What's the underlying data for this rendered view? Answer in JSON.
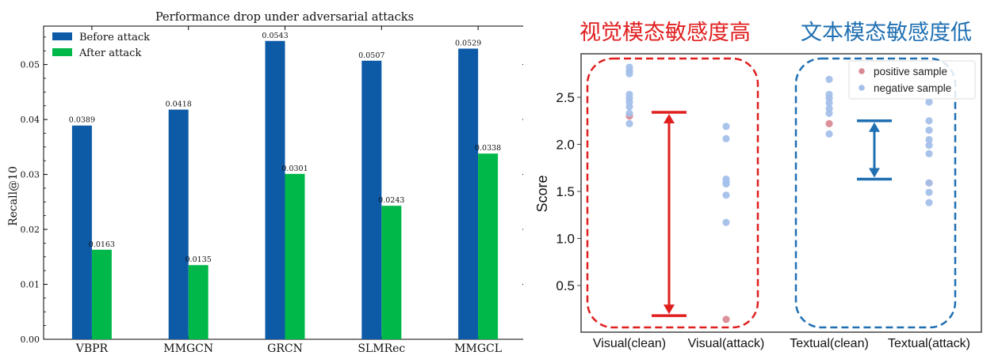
{
  "chart_data": [
    {
      "type": "bar",
      "title": "Performance drop under adversarial attacks",
      "xlabel": "",
      "ylabel": "Recall@10",
      "categories": [
        "VBPR",
        "MMGCN",
        "GRCN",
        "SLMRec",
        "MMGCL"
      ],
      "series": [
        {
          "name": "Before attack",
          "values": [
            0.0389,
            0.0418,
            0.0543,
            0.0507,
            0.0529
          ],
          "labels": [
            "0.0389",
            "0.0418",
            "0.0543",
            "0.0507",
            "0.0529"
          ]
        },
        {
          "name": "After attack",
          "values": [
            0.0163,
            0.0135,
            0.0301,
            0.0243,
            0.0338
          ],
          "labels": [
            "0.0163",
            "0.0135",
            "0.0301",
            "0.0243",
            "0.0338"
          ]
        }
      ],
      "ylim": [
        0,
        0.057
      ],
      "yticks": [
        0.0,
        0.01,
        0.02,
        0.03,
        0.04,
        0.05
      ],
      "ytick_labels": [
        "0.00",
        "0.01",
        "0.02",
        "0.03",
        "0.04",
        "0.05"
      ],
      "legend_position": "top-left",
      "grid": false,
      "colors": {
        "before": "#0d5aa7",
        "after": "#00b84a"
      }
    },
    {
      "type": "scatter",
      "xlabel": "",
      "ylabel": "Score",
      "categories": [
        "Visual(clean)",
        "Visual(attack)",
        "Textual(clean)",
        "Textual(attack)"
      ],
      "ylim": [
        0.0,
        2.9
      ],
      "yticks": [
        0.5,
        1.0,
        1.5,
        2.0,
        2.5
      ],
      "ytick_labels": [
        "0.5",
        "1.0",
        "1.5",
        "2.0",
        "2.5"
      ],
      "legend_position": "top-right",
      "legend": [
        "positive sample",
        "negative sample"
      ],
      "series": [
        {
          "name": "positive sample",
          "color": "#d98a95",
          "points": [
            {
              "x": "Visual(clean)",
              "y": 2.3
            },
            {
              "x": "Visual(attack)",
              "y": 0.14
            },
            {
              "x": "Textual(clean)",
              "y": 2.22
            },
            {
              "x": "Textual(attack)",
              "y": 1.59
            }
          ]
        },
        {
          "name": "negative sample",
          "color": "#a4c0ea",
          "points": [
            {
              "x": "Visual(clean)",
              "y": 2.82
            },
            {
              "x": "Visual(clean)",
              "y": 2.78
            },
            {
              "x": "Visual(clean)",
              "y": 2.75
            },
            {
              "x": "Visual(clean)",
              "y": 2.53
            },
            {
              "x": "Visual(clean)",
              "y": 2.49
            },
            {
              "x": "Visual(clean)",
              "y": 2.45
            },
            {
              "x": "Visual(clean)",
              "y": 2.4
            },
            {
              "x": "Visual(clean)",
              "y": 2.33
            },
            {
              "x": "Visual(clean)",
              "y": 2.22
            },
            {
              "x": "Visual(attack)",
              "y": 2.19
            },
            {
              "x": "Visual(attack)",
              "y": 2.06
            },
            {
              "x": "Visual(attack)",
              "y": 1.63
            },
            {
              "x": "Visual(attack)",
              "y": 1.6
            },
            {
              "x": "Visual(attack)",
              "y": 1.58
            },
            {
              "x": "Visual(attack)",
              "y": 1.46
            },
            {
              "x": "Visual(attack)",
              "y": 1.17
            },
            {
              "x": "Textual(clean)",
              "y": 2.69
            },
            {
              "x": "Textual(clean)",
              "y": 2.53
            },
            {
              "x": "Textual(clean)",
              "y": 2.49
            },
            {
              "x": "Textual(clean)",
              "y": 2.44
            },
            {
              "x": "Textual(clean)",
              "y": 2.38
            },
            {
              "x": "Textual(clean)",
              "y": 2.33
            },
            {
              "x": "Textual(clean)",
              "y": 2.11
            },
            {
              "x": "Textual(attack)",
              "y": 2.45
            },
            {
              "x": "Textual(attack)",
              "y": 2.25
            },
            {
              "x": "Textual(attack)",
              "y": 2.15
            },
            {
              "x": "Textual(attack)",
              "y": 2.05
            },
            {
              "x": "Textual(attack)",
              "y": 1.99
            },
            {
              "x": "Textual(attack)",
              "y": 1.9
            },
            {
              "x": "Textual(attack)",
              "y": 1.59
            },
            {
              "x": "Textual(attack)",
              "y": 1.49
            },
            {
              "x": "Textual(attack)",
              "y": 1.38
            }
          ]
        }
      ],
      "annotations": {
        "visual_label": "视觉模态敏感度高",
        "textual_label": "文本模态敏感度低",
        "visual_color": "#e01e1e",
        "textual_color": "#1f6fb2",
        "visual_range": [
          0.18,
          2.34
        ],
        "textual_range": [
          1.63,
          2.25
        ]
      }
    }
  ]
}
